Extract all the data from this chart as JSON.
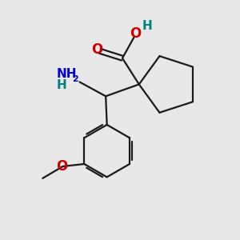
{
  "background_color": "#e8e8e8",
  "bond_color": "#1a1a1a",
  "oxygen_color": "#cc0000",
  "nitrogen_color": "#0000cc",
  "teal_color": "#008080",
  "figsize": [
    3.0,
    3.0
  ],
  "dpi": 100,
  "xlim": [
    0,
    10
  ],
  "ylim": [
    0,
    10
  ]
}
